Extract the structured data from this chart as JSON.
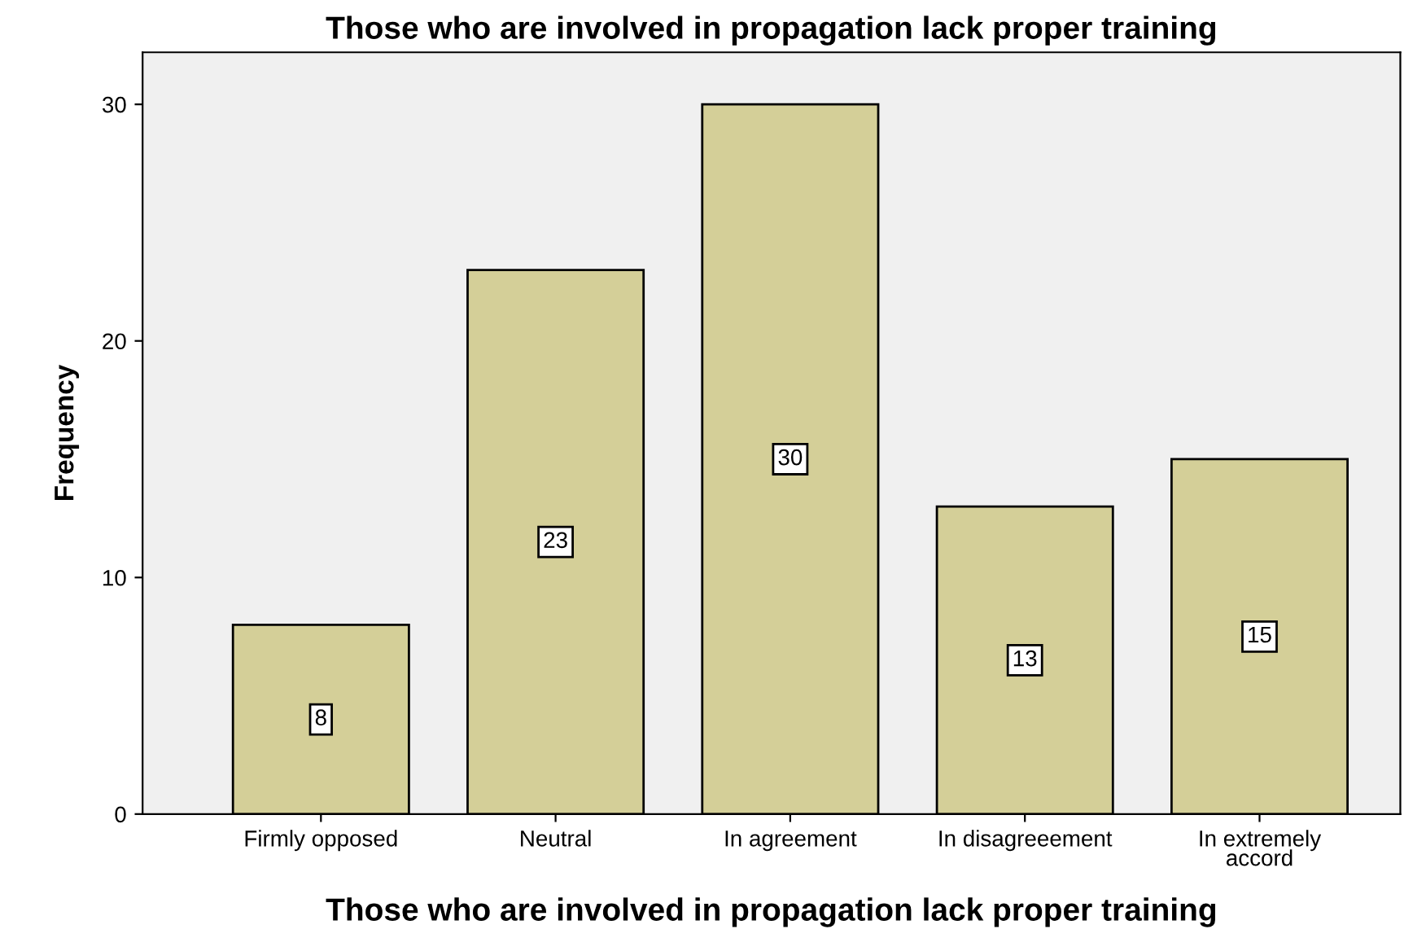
{
  "chart_data": {
    "type": "bar",
    "title": "Those who are involved in propagation lack proper training",
    "xlabel": "Those who are involved in propagation lack proper training",
    "ylabel": "Frequency",
    "categories": [
      "Firmly opposed",
      "Neutral",
      "In agreement",
      "In disagreeement",
      "In extremely\naccord"
    ],
    "values": [
      8,
      23,
      30,
      13,
      15
    ],
    "color": "#d4cf98",
    "ylim": [
      0,
      32.2
    ],
    "yticks": [
      0,
      10,
      20,
      30
    ],
    "grid": false,
    "data_labels": true
  }
}
